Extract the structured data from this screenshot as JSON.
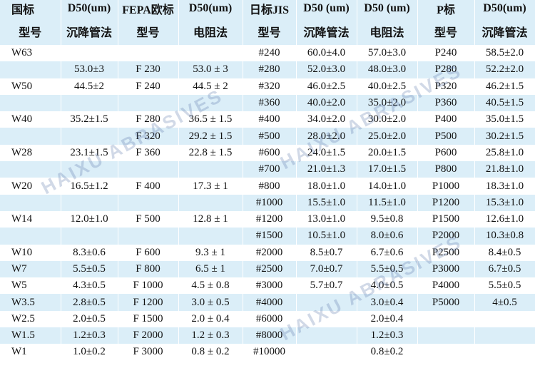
{
  "table": {
    "header": [
      [
        "国标",
        "D50(um)",
        "FEPA欧标",
        "D50(um)",
        "日标JIS",
        "D50 (um)",
        "D50 (um)",
        "P标",
        "D50(um)"
      ],
      [
        "型号",
        "沉降管法",
        "型号",
        "电阻法",
        "型号",
        "沉降管法",
        "电阻法",
        "型号",
        "沉降管法"
      ]
    ],
    "rows": [
      [
        "W63",
        null,
        null,
        null,
        "#240",
        "60.0±4.0",
        "57.0±3.0",
        "P240",
        "58.5±2.0"
      ],
      [
        null,
        "53.0±3",
        "F 230",
        "53.0 ± 3",
        "#280",
        "52.0±3.0",
        "48.0±3.0",
        "P280",
        "52.2±2.0"
      ],
      [
        "W50",
        "44.5±2",
        "F 240",
        "44.5 ± 2",
        "#320",
        "46.0±2.5",
        "40.0±2.5",
        "P320",
        "46.2±1.5"
      ],
      [
        null,
        null,
        null,
        null,
        "#360",
        "40.0±2.0",
        "35.0±2.0",
        "P360",
        "40.5±1.5"
      ],
      [
        "W40",
        "35.2±1.5",
        "F 280",
        "36.5 ± 1.5",
        "#400",
        "34.0±2.0",
        "30.0±2.0",
        "P400",
        "35.0±1.5"
      ],
      [
        null,
        null,
        "F 320",
        "29.2 ± 1.5",
        "#500",
        "28.0±2.0",
        "25.0±2.0",
        "P500",
        "30.2±1.5"
      ],
      [
        "W28",
        "23.1±1.5",
        "F 360",
        "22.8 ± 1.5",
        "#600",
        "24.0±1.5",
        "20.0±1.5",
        "P600",
        "25.8±1.0"
      ],
      [
        null,
        null,
        null,
        null,
        "#700",
        "21.0±1.3",
        "17.0±1.5",
        "P800",
        "21.8±1.0"
      ],
      [
        "W20",
        "16.5±1.2",
        "F 400",
        "17.3 ± 1",
        "#800",
        "18.0±1.0",
        "14.0±1.0",
        "P1000",
        "18.3±1.0"
      ],
      [
        null,
        null,
        null,
        null,
        "#1000",
        "15.5±1.0",
        "11.5±1.0",
        "P1200",
        "15.3±1.0"
      ],
      [
        "W14",
        "12.0±1.0",
        "F 500",
        "12.8 ± 1",
        "#1200",
        "13.0±1.0",
        "9.5±0.8",
        "P1500",
        "12.6±1.0"
      ],
      [
        null,
        null,
        null,
        null,
        "#1500",
        "10.5±1.0",
        "8.0±0.6",
        "P2000",
        "10.3±0.8"
      ],
      [
        "W10",
        "8.3±0.6",
        "F 600",
        "9.3 ± 1",
        "#2000",
        "8.5±0.7",
        "6.7±0.6",
        "P2500",
        "8.4±0.5"
      ],
      [
        "W7",
        "5.5±0.5",
        "F 800",
        "6.5 ± 1",
        "#2500",
        "7.0±0.7",
        "5.5±0.5",
        "P3000",
        "6.7±0.5"
      ],
      [
        "W5",
        "4.3±0.5",
        "F 1000",
        "4.5 ± 0.8",
        "#3000",
        "5.7±0.7",
        "4.0±0.5",
        "P4000",
        "5.5±0.5"
      ],
      [
        "W3.5",
        "2.8±0.5",
        "F 1200",
        "3.0 ± 0.5",
        "#4000",
        null,
        "3.0±0.4",
        "P5000",
        "4±0.5"
      ],
      [
        "W2.5",
        "2.0±0.5",
        "F 1500",
        "2.0 ± 0.4",
        "#6000",
        null,
        "2.0±0.4",
        null,
        null
      ],
      [
        "W1.5",
        "1.2±0.3",
        "F 2000",
        "1.2 ± 0.3",
        "#8000",
        null,
        "1.2±0.3",
        null,
        null
      ],
      [
        "W1",
        "1.0±0.2",
        "F 3000",
        "0.8 ± 0.2",
        "#10000",
        null,
        "0.8±0.2",
        null,
        null
      ]
    ],
    "watermark": "HAIXU ABRASIVES"
  }
}
